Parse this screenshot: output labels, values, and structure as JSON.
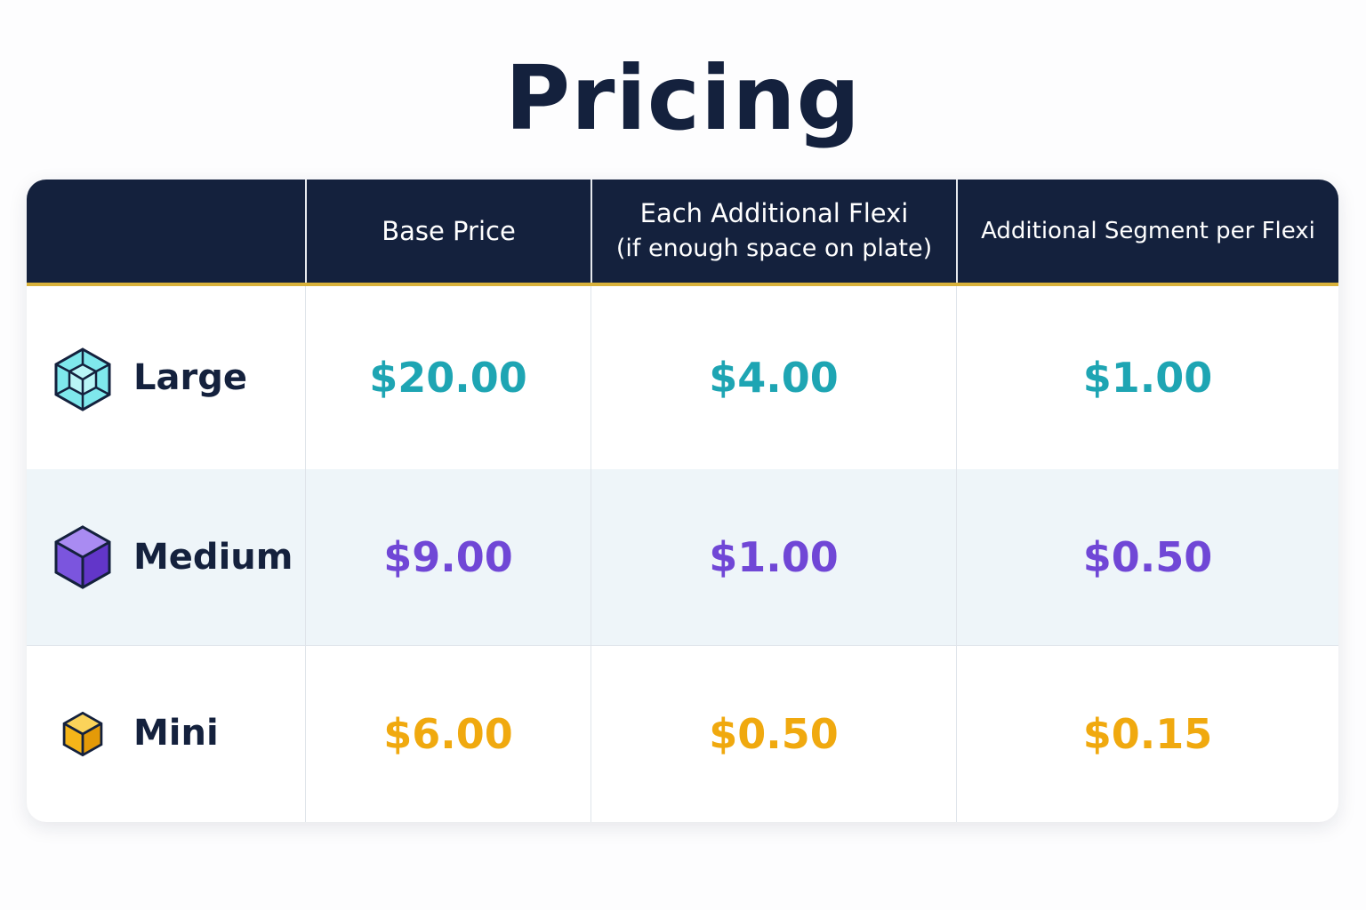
{
  "header": {
    "title": "Pricing"
  },
  "table": {
    "columns": [
      {
        "lines": [
          "Base Price"
        ]
      },
      {
        "lines": [
          "Each Additional Flexi",
          "(if enough space on plate)"
        ]
      },
      {
        "lines": [
          "Additional Segment per Flexi"
        ]
      }
    ],
    "rows": [
      {
        "label": "Large",
        "prices": [
          "$20.00",
          "$4.00",
          "$1.00"
        ]
      },
      {
        "label": "Medium",
        "prices": [
          "$9.00",
          "$1.00",
          "$0.50"
        ]
      },
      {
        "label": "Mini",
        "prices": [
          "$6.00",
          "$0.50",
          "$0.15"
        ]
      }
    ]
  }
}
